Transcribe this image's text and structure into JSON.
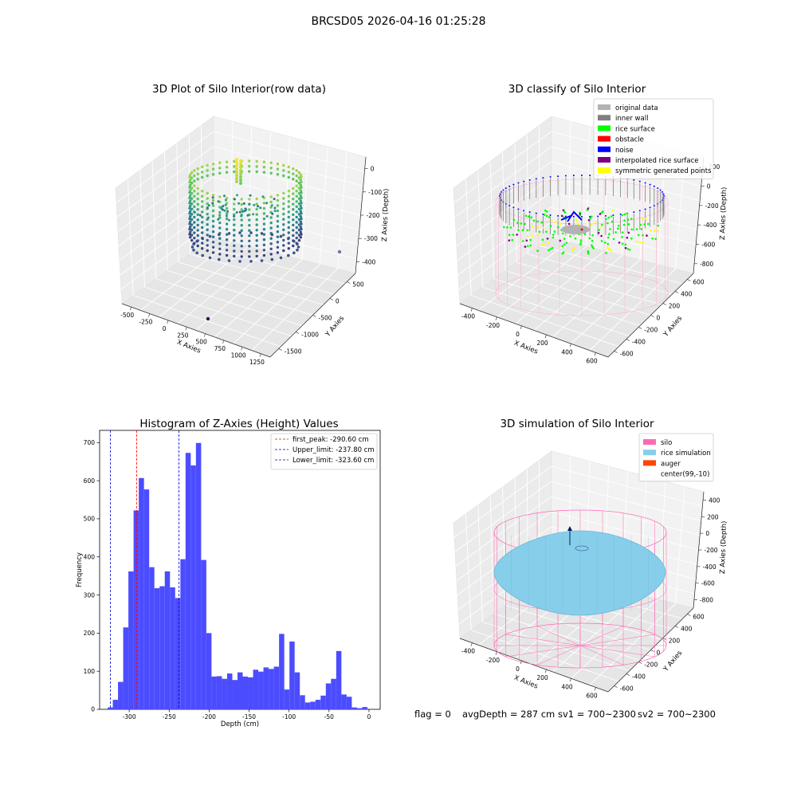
{
  "suptitle": "BRCSD05 2026-04-16 01:25:28",
  "footer": {
    "flag": "flag = 0",
    "avg_depth": "avgDepth = 287 cm",
    "sv1": "sv1 = 700~2300",
    "sv2": "sv2 = 700~2300"
  },
  "chart_data": [
    {
      "type": "scatter",
      "title": "3D Plot of Silo Interior(row data)",
      "xlabel": "X Axies",
      "ylabel": "Y Axies",
      "zlabel": "Z Axies (Depth)",
      "x_ticks": [
        "-500",
        "-250",
        "0",
        "250",
        "500",
        "750",
        "1000",
        "1250"
      ],
      "y_ticks": [
        "500",
        "0",
        "-500",
        "-1000",
        "-1500"
      ],
      "z_ticks": [
        "0",
        "-100",
        "-200",
        "-300",
        "-400"
      ],
      "colormap": "viridis",
      "outliers": [
        {
          "color": "#440154"
        },
        {
          "color": "#7d6ea8"
        }
      ]
    },
    {
      "type": "scatter",
      "title": "3D classify of Silo Interior",
      "xlabel": "X Axies",
      "ylabel": "Y Axies",
      "zlabel": "Z Axies (Depth)",
      "x_ticks": [
        "-400",
        "-200",
        "0",
        "200",
        "400",
        "600"
      ],
      "y_ticks": [
        "600",
        "400",
        "200",
        "0",
        "-200",
        "-400",
        "-600"
      ],
      "z_ticks": [
        "200",
        "0",
        "-200",
        "-400",
        "-600",
        "-800"
      ],
      "legend_position": "top-right",
      "legend": [
        {
          "label": "original data",
          "color": "#b3b3b3"
        },
        {
          "label": "inner wall",
          "color": "#808080"
        },
        {
          "label": "rice surface",
          "color": "#00ff00"
        },
        {
          "label": "obstacle",
          "color": "#ff0000"
        },
        {
          "label": "noise",
          "color": "#0000ff"
        },
        {
          "label": "interpolated rice surface",
          "color": "#800080"
        },
        {
          "label": "symmetric generated points",
          "color": "#ffff00"
        }
      ],
      "wireframe_color": "#ffb6d5"
    },
    {
      "type": "bar",
      "title": "Histogram of Z-Axies (Height) Values",
      "xlabel": "Depth (cm)",
      "ylabel": "Frequency",
      "xlim": [
        -337,
        14
      ],
      "ylim": [
        0,
        732
      ],
      "x_ticks": [
        -300,
        -250,
        -200,
        -150,
        -100,
        -50,
        0
      ],
      "y_ticks": [
        0,
        100,
        200,
        300,
        400,
        500,
        600,
        700
      ],
      "bar_color": "#4c4cff",
      "bins": {
        "start": -327,
        "width": 6.5,
        "values": [
          5,
          25,
          72,
          215,
          362,
          522,
          607,
          577,
          373,
          318,
          323,
          362,
          320,
          292,
          394,
          673,
          640,
          699,
          392,
          200,
          86,
          87,
          80,
          94,
          77,
          97,
          86,
          84,
          104,
          99,
          110,
          106,
          112,
          198,
          52,
          178,
          97,
          37,
          18,
          20,
          25,
          36,
          68,
          80,
          153,
          39,
          33,
          5,
          3,
          6
        ]
      },
      "lines": [
        {
          "label": "first_peak: -290.60 cm",
          "x": -290.6,
          "color": "#ff0000"
        },
        {
          "label": "Upper_limit: -237.80 cm",
          "x": -237.8,
          "color": "#0000cc"
        },
        {
          "label": "Lower_limit: -323.60 cm",
          "x": -323.6,
          "color": "#0000cc"
        }
      ],
      "legend_position": "top-right"
    },
    {
      "type": "scatter",
      "title": "3D simulation of Silo Interior",
      "xlabel": "X Axies",
      "ylabel": "Y Axies",
      "zlabel": "Z Axies (Depth)",
      "x_ticks": [
        "-400",
        "-200",
        "0",
        "200",
        "400",
        "600"
      ],
      "y_ticks": [
        "600",
        "400",
        "200",
        "0",
        "-200",
        "-400",
        "-600"
      ],
      "z_ticks": [
        "400",
        "200",
        "0",
        "-200",
        "-400",
        "-600",
        "-800"
      ],
      "legend_position": "top-right",
      "legend": [
        {
          "label": "silo",
          "color": "#ff69b4"
        },
        {
          "label": "rice simulation",
          "color": "#87ceeb"
        },
        {
          "label": "auger",
          "color": "#ff4500"
        },
        {
          "label": "center(99,-10)",
          "color": "#ffffff"
        }
      ]
    }
  ]
}
